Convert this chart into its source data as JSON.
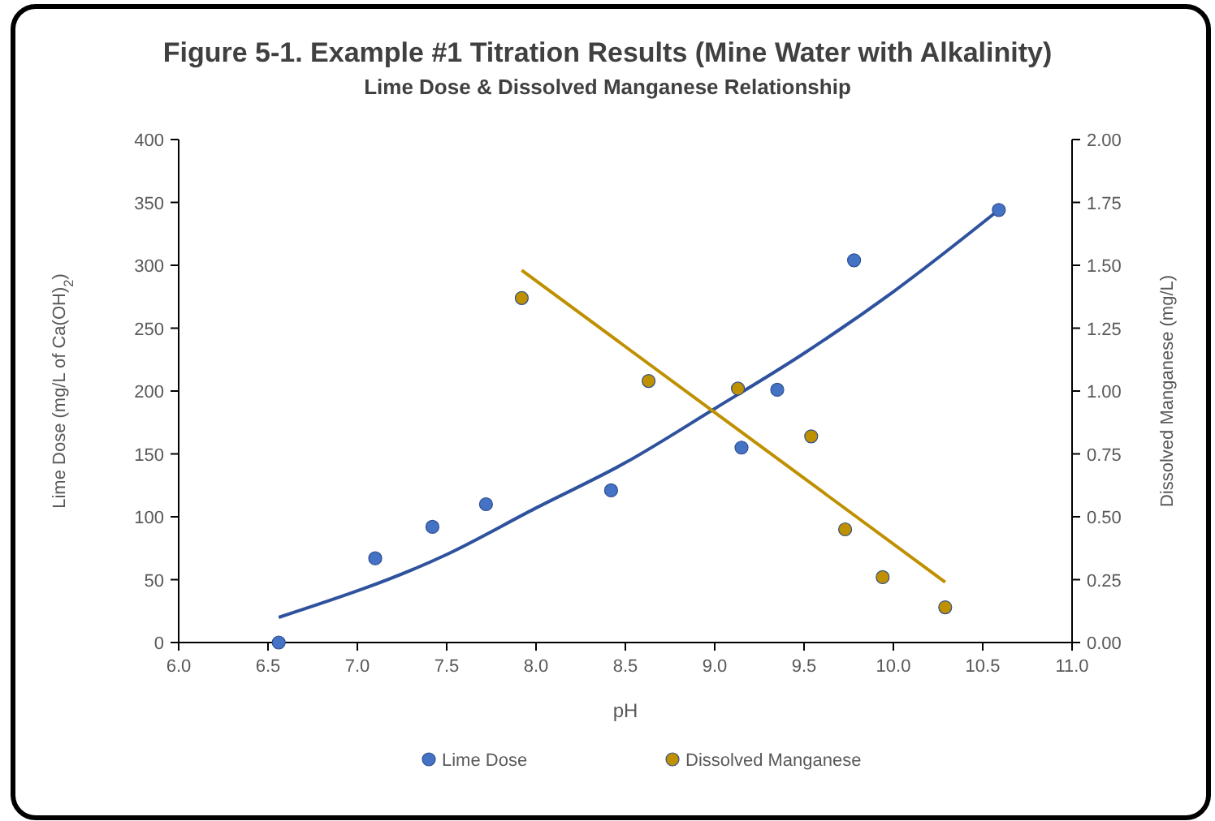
{
  "chart_data": {
    "type": "scatter",
    "title": "Figure 5-1. Example #1 Titration Results (Mine Water with Alkalinity)",
    "subtitle": "Lime Dose & Dissolved Manganese Relationship",
    "xlabel": "pH",
    "ylabel": "Lime Dose (mg/L of Ca(OH)$_{2}$)",
    "y2label": "Dissolved Manganese (mg/L)",
    "xlim": [
      6,
      11
    ],
    "xticks": [
      {
        "value": 6,
        "label": "6.0"
      },
      {
        "value": 6.5,
        "label": "6.5"
      },
      {
        "value": 7,
        "label": "7.0"
      },
      {
        "value": 7.5,
        "label": "7.5"
      },
      {
        "value": 8,
        "label": "8.0"
      },
      {
        "value": 8.5,
        "label": "8.5"
      },
      {
        "value": 9,
        "label": "9.0"
      },
      {
        "value": 9.5,
        "label": "9.5"
      },
      {
        "value": 10,
        "label": "10.0"
      },
      {
        "value": 10.5,
        "label": "10.5"
      },
      {
        "value": 11,
        "label": "11.0"
      }
    ],
    "ylim": [
      0,
      400
    ],
    "yticks": [
      0,
      50,
      100,
      150,
      200,
      250,
      300,
      350,
      400
    ],
    "y2lim": [
      0,
      2
    ],
    "y2ticks": [
      {
        "value": 0,
        "label": "0.00"
      },
      {
        "value": 0.25,
        "label": "0.25"
      },
      {
        "value": 0.5,
        "label": "0.50"
      },
      {
        "value": 0.75,
        "label": "0.75"
      },
      {
        "value": 1,
        "label": "1.00"
      },
      {
        "value": 1.25,
        "label": "1.25"
      },
      {
        "value": 1.5,
        "label": "1.50"
      },
      {
        "value": 1.75,
        "label": "1.75"
      },
      {
        "value": 2,
        "label": "2.00"
      }
    ],
    "grid": false,
    "legend": "bottom",
    "marker": "circle",
    "series": [
      {
        "name": "Lime Dose",
        "color": "#4472c4",
        "x": [
          6.56,
          7.1,
          7.42,
          7.72,
          8.42,
          9.15,
          9.35,
          9.78,
          10.59
        ],
        "values": [
          0,
          67,
          92,
          110,
          121,
          155,
          201,
          304,
          344
        ]
      },
      {
        "name": "Dissolved Manganese",
        "color": "#bf9000",
        "axis": "y2",
        "x": [
          7.92,
          8.63,
          9.13,
          9.54,
          9.73,
          9.94,
          10.29
        ],
        "values": [
          1.37,
          1.04,
          1.01,
          0.82,
          0.45,
          0.26,
          0.14
        ]
      },
      {
        "type": "line",
        "marker": "none",
        "color": "#2f529e",
        "x": [
          6.56,
          7.5,
          8,
          8.5,
          9,
          9.5,
          10,
          10.59
        ],
        "values": [
          20,
          70,
          107,
          143,
          186,
          230,
          279,
          344
        ]
      },
      {
        "type": "line",
        "marker": "none",
        "color": "#bf9000",
        "axis": "y2",
        "x": [
          7.92,
          10.29
        ],
        "values": [
          1.48,
          0.24
        ]
      }
    ]
  }
}
